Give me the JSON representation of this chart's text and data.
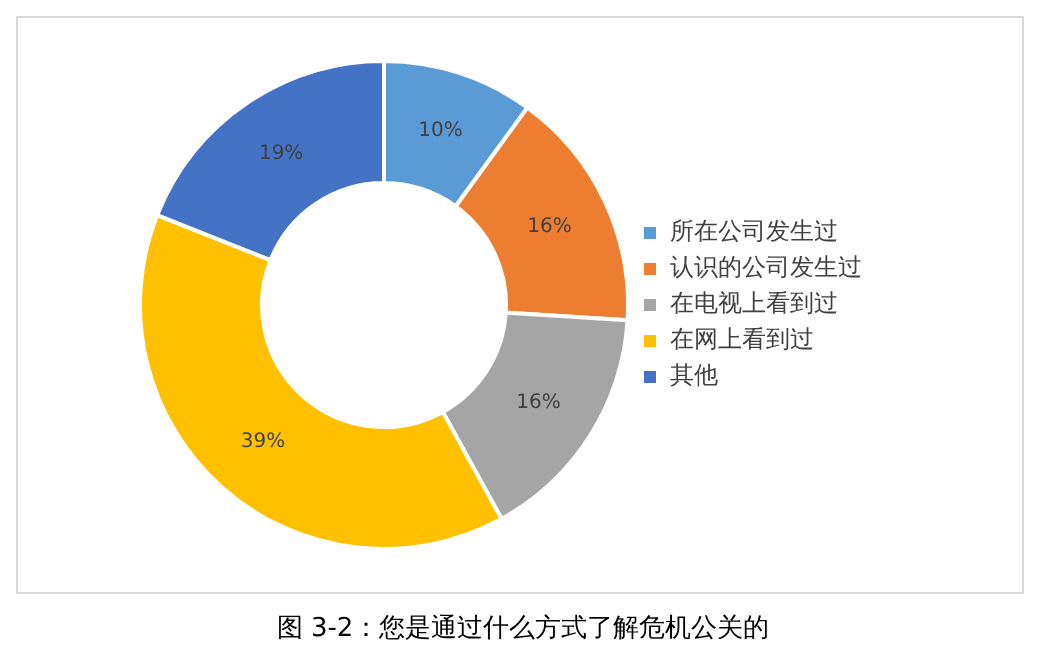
{
  "chart_data": {
    "type": "donut",
    "categories": [
      "所在公司发生过",
      "认识的公司发生过",
      "在电视上看到过",
      "在网上看到过",
      "其他"
    ],
    "values": [
      10,
      16,
      16,
      39,
      19
    ],
    "colors": [
      "#5b9bd5",
      "#ed7d31",
      "#a5a5a5",
      "#ffc000",
      "#4472c4"
    ],
    "value_labels": [
      "10%",
      "16%",
      "16%",
      "39%",
      "19%"
    ],
    "legend": "right",
    "annotations": [
      "图 3-2：您是通过什么方式了解危机公关的"
    ]
  }
}
